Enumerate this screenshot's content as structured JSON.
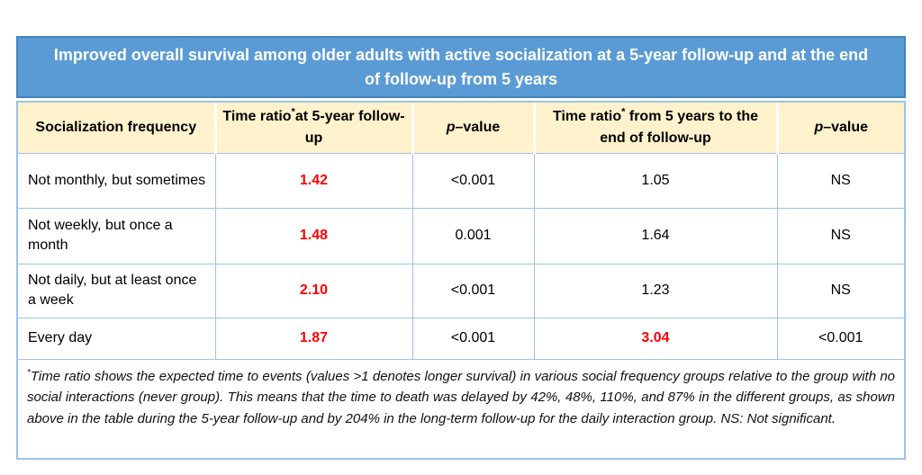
{
  "colors": {
    "title-bg": "#5B9BD5",
    "title-border": "#4583BE",
    "header-bg": "#FFF2CC",
    "grid": "#9DC3E6",
    "red": "#FF0000"
  },
  "chart_data": {
    "type": "table",
    "title": "Improved overall survival among older adults with active socialization at a 5-year follow-up and at the end of follow-up from 5 years",
    "columns": [
      "Socialization frequency",
      "Time ratio* at 5-year follow-up",
      "p–value",
      "Time ratio* from 5 years to the end of follow-up",
      "p–value"
    ],
    "rows": [
      [
        "Not monthly, but sometimes",
        "1.42",
        "<0.001",
        "1.05",
        "NS"
      ],
      [
        "Not weekly, but once a month",
        "1.48",
        "0.001",
        "1.64",
        "NS"
      ],
      [
        "Not daily, but at least once a week",
        "2.10",
        "<0.001",
        "1.23",
        "NS"
      ],
      [
        "Every day",
        "1.87",
        "<0.001",
        "3.04",
        "<0.001"
      ]
    ],
    "highlighted": [
      [
        false,
        true,
        false,
        false,
        false
      ],
      [
        false,
        true,
        false,
        false,
        false
      ],
      [
        false,
        true,
        false,
        false,
        false
      ],
      [
        false,
        true,
        false,
        true,
        false
      ]
    ],
    "footnote": "*Time ratio shows the expected time to events (values >1 denotes longer survival) in various social frequency groups relative to the group with no social interactions (never group). This means that the time to death was delayed by 42%, 48%, 110%, and 87% in the different groups, as shown above in the table during the 5-year follow-up and by 204% in the long-term follow-up for the daily interaction group. NS: Not significant."
  },
  "header_parts": {
    "col2": {
      "base": "Time ratio",
      "sup": "*",
      "rest": "at 5-year follow-up"
    },
    "col3": {
      "italic": "p",
      "rest": "–value"
    },
    "col4": {
      "base": "Time ratio",
      "sup": "*",
      "rest": " from 5 years to the end of follow-up"
    },
    "col5": {
      "italic": "p",
      "rest": "–value"
    }
  },
  "footnote_parts": {
    "marker": "*",
    "text": "Time ratio shows the expected time to events (values >1 denotes longer survival) in various social frequency groups relative to the group with no social interactions (never group). This means that the time to death was delayed by 42%, 48%, 110%, and 87% in the different groups, as shown above in the table during the 5-year follow-up and by 204% in the long-term follow-up for the daily interaction group. NS: Not significant."
  }
}
